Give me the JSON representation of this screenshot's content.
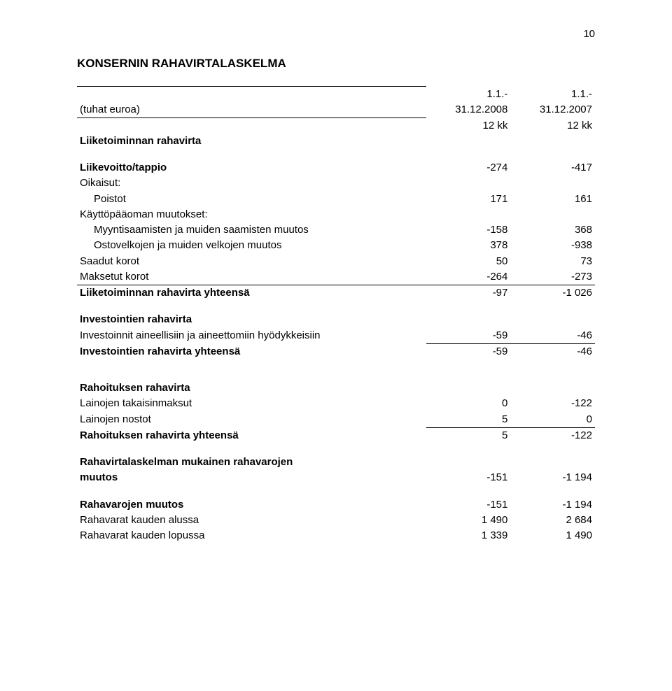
{
  "page_number": "10",
  "title": "KONSERNIN RAHAVIRTALASKELMA",
  "header": {
    "unit_label": "(tuhat euroa)",
    "col1_line1": "1.1.-",
    "col1_line2": "31.12.2008",
    "col1_line3": "12 kk",
    "col2_line1": "1.1.-",
    "col2_line2": "31.12.2007",
    "col2_line3": "12 kk"
  },
  "sections": {
    "operating_header": "Liiketoiminnan rahavirta",
    "liikevoitto": {
      "label": "Liikevoitto/tappio",
      "v1": "-274",
      "v2": "-417"
    },
    "oikaisut": "Oikaisut:",
    "poistot": {
      "label": "Poistot",
      "v1": "171",
      "v2": "161"
    },
    "kp_header": "Käyttöpääoman muutokset:",
    "myynti": {
      "label": "Myyntisaamisten ja muiden saamisten muutos",
      "v1": "-158",
      "v2": "368"
    },
    "osto": {
      "label": "Ostovelkojen ja muiden velkojen muutos",
      "v1": "378",
      "v2": "-938"
    },
    "saatu": {
      "label": "Saadut korot",
      "v1": "50",
      "v2": "73"
    },
    "makset": {
      "label": "Maksetut korot",
      "v1": "-264",
      "v2": "-273"
    },
    "op_total": {
      "label": "Liiketoiminnan rahavirta yhteensä",
      "v1": "-97",
      "v2": "-1 026"
    },
    "inv_header": "Investointien rahavirta",
    "inv_line": {
      "label": "Investoinnit aineellisiin ja aineettomiin hyödykkeisiin",
      "v1": "-59",
      "v2": "-46"
    },
    "inv_total": {
      "label": "Investointien rahavirta yhteensä",
      "v1": "-59",
      "v2": "-46"
    },
    "fin_header": "Rahoituksen rahavirta",
    "lainojen_takaisin": {
      "label": "Lainojen takaisinmaksut",
      "v1": "0",
      "v2": "-122"
    },
    "lainojen_nostot": {
      "label": "Lainojen nostot",
      "v1": "5",
      "v2": "0"
    },
    "fin_total": {
      "label": "Rahoituksen rahavirta yhteensä",
      "v1": "5",
      "v2": "-122"
    },
    "rvl_label1": "Rahavirtalaskelman mukainen rahavarojen",
    "rvl_label2": "muutos",
    "rvl": {
      "v1": "-151",
      "v2": "-1 194"
    },
    "muutos": {
      "label": "Rahavarojen muutos",
      "v1": "-151",
      "v2": "-1 194"
    },
    "alussa": {
      "label": "Rahavarat kauden alussa",
      "v1": "1 490",
      "v2": "2 684"
    },
    "lopussa": {
      "label": "Rahavarat kauden lopussa",
      "v1": "1 339",
      "v2": "1 490"
    }
  }
}
